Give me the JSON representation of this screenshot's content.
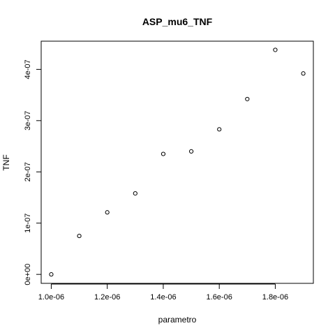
{
  "chart_data": {
    "type": "scatter",
    "title": "ASP_mu6_TNF",
    "xlabel": "parametro",
    "ylabel": "TNF",
    "x_ticks": [
      1e-06,
      1.2e-06,
      1.4e-06,
      1.6e-06,
      1.8e-06
    ],
    "x_tick_labels": [
      "1.0e-06",
      "1.2e-06",
      "1.4e-06",
      "1.6e-06",
      "1.8e-06"
    ],
    "y_ticks": [
      0,
      1e-07,
      2e-07,
      3e-07,
      4e-07
    ],
    "y_tick_labels": [
      "0e+00",
      "1e-07",
      "2e-07",
      "3e-07",
      "4e-07"
    ],
    "xlim": [
      9.64e-07,
      1.936e-06
    ],
    "ylim": [
      -1.75e-08,
      4.55e-07
    ],
    "grid": false,
    "marker": "open-circle",
    "points": [
      {
        "x": 1e-06,
        "y": 0
      },
      {
        "x": 1.1e-06,
        "y": 7.5e-08
      },
      {
        "x": 1.2e-06,
        "y": 1.21e-07
      },
      {
        "x": 1.3e-06,
        "y": 1.58e-07
      },
      {
        "x": 1.4e-06,
        "y": 2.35e-07
      },
      {
        "x": 1.5e-06,
        "y": 2.4e-07
      },
      {
        "x": 1.6e-06,
        "y": 2.83e-07
      },
      {
        "x": 1.7e-06,
        "y": 3.42e-07
      },
      {
        "x": 1.8e-06,
        "y": 4.38e-07
      },
      {
        "x": 1.9e-06,
        "y": 3.92e-07
      }
    ]
  }
}
